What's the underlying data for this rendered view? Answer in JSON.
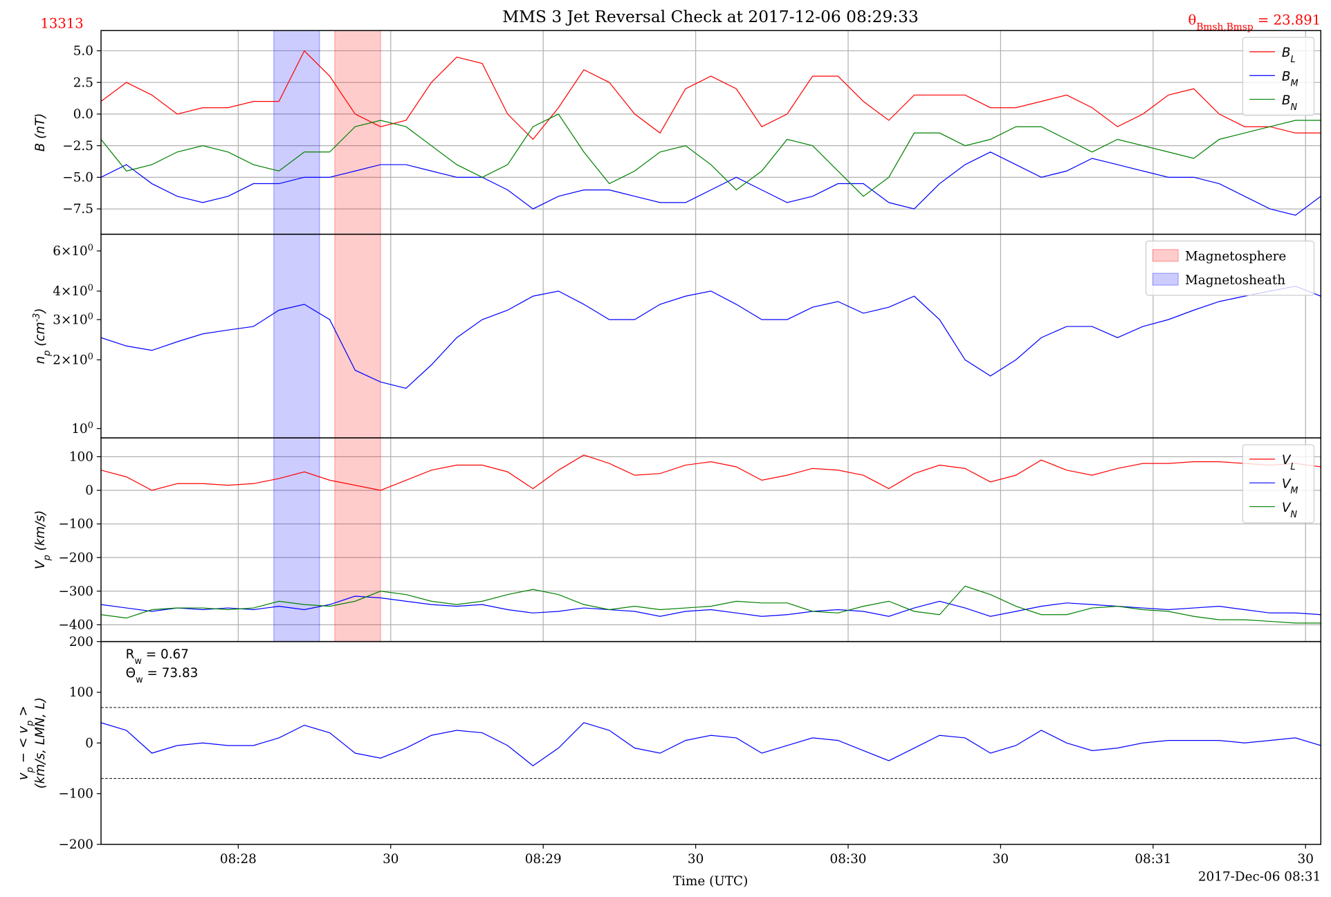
{
  "figure": {
    "title": "MMS 3 Jet Reversal Check at 2017-12-06 08:29:33",
    "id_label": "13313",
    "angle_label": "θ_{Bmsh,Bmsp} = 23.891",
    "xlabel": "Time (UTC)",
    "date_label": "2017-Dec-06 08:31"
  },
  "chart_data": [
    {
      "type": "line",
      "ylabel": "B (nT)",
      "grid": "both",
      "legend": "upper right",
      "x": [
        "08:27:33",
        "08:27:38",
        "08:27:43",
        "08:27:48",
        "08:27:53",
        "08:27:58",
        "08:28:03",
        "08:28:08",
        "08:28:13",
        "08:28:18",
        "08:28:23",
        "08:28:28",
        "08:28:33",
        "08:28:38",
        "08:28:43",
        "08:28:48",
        "08:28:53",
        "08:28:58",
        "08:29:03",
        "08:29:08",
        "08:29:13",
        "08:29:18",
        "08:29:23",
        "08:29:28",
        "08:29:33",
        "08:29:38",
        "08:29:43",
        "08:29:48",
        "08:29:53",
        "08:29:58",
        "08:30:03",
        "08:30:08",
        "08:30:13",
        "08:30:18",
        "08:30:23",
        "08:30:28",
        "08:30:33",
        "08:30:38",
        "08:30:43",
        "08:30:48",
        "08:30:53",
        "08:30:58",
        "08:31:03",
        "08:31:08",
        "08:31:13",
        "08:31:18",
        "08:31:23",
        "08:31:28",
        "08:31:33"
      ],
      "xlim": [
        "08:27:33",
        "08:31:33"
      ],
      "ylim": [
        -9.5,
        6.6
      ],
      "yticks": [
        {
          "value": 5,
          "label": "5.0"
        },
        2.5,
        {
          "value": 0,
          "label": "0.0"
        },
        {
          "value": -2.5,
          "label": "−2.5"
        },
        {
          "value": -5,
          "label": "−5.0"
        },
        {
          "value": -7.5,
          "label": "−7.5"
        }
      ],
      "series": [
        {
          "name": "B_L",
          "color": "#ff0000",
          "values": [
            1,
            2.5,
            1.5,
            0,
            0.5,
            0.5,
            1,
            1,
            5,
            3,
            0,
            -1,
            -0.5,
            2.5,
            4.5,
            4,
            0,
            -2,
            0.5,
            3.5,
            2.5,
            0,
            -1.5,
            2,
            3,
            2,
            -1,
            0,
            3,
            3,
            1,
            -0.5,
            1.5,
            1.5,
            1.5,
            0.5,
            0.5,
            1,
            1.5,
            0.5,
            -1,
            0,
            1.5,
            2,
            0,
            -1,
            -1,
            -1.5,
            -1.5
          ]
        },
        {
          "name": "B_M",
          "color": "#0000ff",
          "values": [
            -5,
            -4,
            -5.5,
            -6.5,
            -7,
            -6.5,
            -5.5,
            -5.5,
            -5,
            -5,
            -4.5,
            -4,
            -4,
            -4.5,
            -5,
            -5,
            -6,
            -7.5,
            -6.5,
            -6,
            -6,
            -6.5,
            -7,
            -7,
            -6,
            -5,
            -6,
            -7,
            -6.5,
            -5.5,
            -5.5,
            -7,
            -7.5,
            -5.5,
            -4,
            -3,
            -4,
            -5,
            -4.5,
            -3.5,
            -4,
            -4.5,
            -5,
            -5,
            -5.5,
            -6.5,
            -7.5,
            -8,
            -6.5
          ]
        },
        {
          "name": "B_N",
          "color": "#008000",
          "values": [
            -2,
            -4.5,
            -4,
            -3,
            -2.5,
            -3,
            -4,
            -4.5,
            -3,
            -3,
            -1,
            -0.5,
            -1,
            -2.5,
            -4,
            -5,
            -4,
            -1,
            0,
            -3,
            -5.5,
            -4.5,
            -3,
            -2.5,
            -4,
            -6,
            -4.5,
            -2,
            -2.5,
            -4.5,
            -6.5,
            -5,
            -1.5,
            -1.5,
            -2.5,
            -2,
            -1,
            -1,
            -2,
            -3,
            -2,
            -2.5,
            -3,
            -3.5,
            -2,
            -1.5,
            -1,
            -0.5,
            -0.5
          ]
        }
      ]
    },
    {
      "type": "line",
      "ylabel": "n_p (cm^{-3})",
      "grid": "x",
      "log": true,
      "legend": "upper right",
      "x": [
        "08:27:33",
        "08:27:38",
        "08:27:43",
        "08:27:48",
        "08:27:53",
        "08:27:58",
        "08:28:03",
        "08:28:08",
        "08:28:13",
        "08:28:18",
        "08:28:23",
        "08:28:28",
        "08:28:33",
        "08:28:38",
        "08:28:43",
        "08:28:48",
        "08:28:53",
        "08:28:58",
        "08:29:03",
        "08:29:08",
        "08:29:13",
        "08:29:18",
        "08:29:23",
        "08:29:28",
        "08:29:33",
        "08:29:38",
        "08:29:43",
        "08:29:48",
        "08:29:53",
        "08:29:58",
        "08:30:03",
        "08:30:08",
        "08:30:13",
        "08:30:18",
        "08:30:23",
        "08:30:28",
        "08:30:33",
        "08:30:38",
        "08:30:43",
        "08:30:48",
        "08:30:53",
        "08:30:58",
        "08:31:03",
        "08:31:08",
        "08:31:13",
        "08:31:18",
        "08:31:23",
        "08:31:28",
        "08:31:33"
      ],
      "xlim": [
        "08:27:33",
        "08:31:33"
      ],
      "ylim": [
        0.91,
        7.1
      ],
      "yticks": [
        {
          "value": 1,
          "label": "10^0"
        },
        {
          "value": 2,
          "label": "2×10^0"
        },
        {
          "value": 3,
          "label": "3×10^0"
        },
        {
          "value": 4,
          "label": "4×10^0"
        },
        {
          "value": 6,
          "label": "6×10^0"
        }
      ],
      "series": [
        {
          "color": "#0000ff",
          "values": [
            2.5,
            2.3,
            2.2,
            2.4,
            2.6,
            2.7,
            2.8,
            3.3,
            3.5,
            3,
            1.8,
            1.6,
            1.5,
            1.9,
            2.5,
            3,
            3.3,
            3.8,
            4,
            3.5,
            3,
            3,
            3.5,
            3.8,
            4,
            3.5,
            3,
            3,
            3.4,
            3.6,
            3.2,
            3.4,
            3.8,
            3,
            2,
            1.7,
            2,
            2.5,
            2.8,
            2.8,
            2.5,
            2.8,
            3,
            3.3,
            3.6,
            3.8,
            4,
            4.2,
            3.8
          ]
        }
      ],
      "spans": [
        {
          "label": "Magnetosphere",
          "color": "#ff0000",
          "range": [
            "08:28:19",
            "08:28:28"
          ]
        },
        {
          "label": "Magnetosheath",
          "color": "#0000ff",
          "range": [
            "08:28:07",
            "08:28:16"
          ]
        }
      ]
    },
    {
      "type": "line",
      "ylabel": "V_p (km/s)",
      "grid": "both",
      "legend": "upper right",
      "x": [
        "08:27:33",
        "08:27:38",
        "08:27:43",
        "08:27:48",
        "08:27:53",
        "08:27:58",
        "08:28:03",
        "08:28:08",
        "08:28:13",
        "08:28:18",
        "08:28:23",
        "08:28:28",
        "08:28:33",
        "08:28:38",
        "08:28:43",
        "08:28:48",
        "08:28:53",
        "08:28:58",
        "08:29:03",
        "08:29:08",
        "08:29:13",
        "08:29:18",
        "08:29:23",
        "08:29:28",
        "08:29:33",
        "08:29:38",
        "08:29:43",
        "08:29:48",
        "08:29:53",
        "08:29:58",
        "08:30:03",
        "08:30:08",
        "08:30:13",
        "08:30:18",
        "08:30:23",
        "08:30:28",
        "08:30:33",
        "08:30:38",
        "08:30:43",
        "08:30:48",
        "08:30:53",
        "08:30:58",
        "08:31:03",
        "08:31:08",
        "08:31:13",
        "08:31:18",
        "08:31:23",
        "08:31:28",
        "08:31:33"
      ],
      "xlim": [
        "08:27:33",
        "08:31:33"
      ],
      "ylim": [
        -450,
        156
      ],
      "yticks": [
        100,
        0,
        {
          "value": -100,
          "label": "−100"
        },
        {
          "value": -200,
          "label": "−200"
        },
        {
          "value": -300,
          "label": "−300"
        },
        {
          "value": -400,
          "label": "−400"
        }
      ],
      "series": [
        {
          "name": "V_L",
          "color": "#ff0000",
          "values": [
            60,
            40,
            0,
            20,
            20,
            15,
            20,
            35,
            55,
            30,
            15,
            0,
            30,
            60,
            75,
            75,
            55,
            5,
            60,
            105,
            80,
            45,
            50,
            75,
            85,
            70,
            30,
            45,
            65,
            60,
            45,
            5,
            50,
            75,
            65,
            25,
            45,
            90,
            60,
            45,
            65,
            80,
            80,
            85,
            85,
            80,
            75,
            80,
            70
          ]
        },
        {
          "name": "V_M",
          "color": "#0000ff",
          "values": [
            -340,
            -350,
            -360,
            -350,
            -355,
            -350,
            -355,
            -345,
            -355,
            -340,
            -315,
            -320,
            -330,
            -340,
            -345,
            -340,
            -355,
            -365,
            -360,
            -350,
            -355,
            -360,
            -375,
            -360,
            -355,
            -365,
            -375,
            -370,
            -360,
            -355,
            -360,
            -375,
            -350,
            -330,
            -350,
            -375,
            -360,
            -345,
            -335,
            -340,
            -345,
            -350,
            -355,
            -350,
            -345,
            -355,
            -365,
            -365,
            -370
          ]
        },
        {
          "name": "V_N",
          "color": "#008000",
          "values": [
            -370,
            -380,
            -355,
            -350,
            -350,
            -355,
            -350,
            -330,
            -340,
            -345,
            -330,
            -300,
            -310,
            -330,
            -340,
            -330,
            -310,
            -295,
            -310,
            -340,
            -355,
            -345,
            -355,
            -350,
            -345,
            -330,
            -335,
            -335,
            -360,
            -365,
            -345,
            -330,
            -360,
            -370,
            -285,
            -310,
            -345,
            -370,
            -370,
            -350,
            -345,
            -355,
            -360,
            -375,
            -385,
            -385,
            -390,
            -395,
            -395
          ]
        }
      ]
    },
    {
      "type": "line",
      "ylabel": [
        "v_p − < v_p >",
        "(km/s, LMN, L)"
      ],
      "grid": "none",
      "x": [
        "08:27:33",
        "08:27:38",
        "08:27:43",
        "08:27:48",
        "08:27:53",
        "08:27:58",
        "08:28:03",
        "08:28:08",
        "08:28:13",
        "08:28:18",
        "08:28:23",
        "08:28:28",
        "08:28:33",
        "08:28:38",
        "08:28:43",
        "08:28:48",
        "08:28:53",
        "08:28:58",
        "08:29:03",
        "08:29:08",
        "08:29:13",
        "08:29:18",
        "08:29:23",
        "08:29:28",
        "08:29:33",
        "08:29:38",
        "08:29:43",
        "08:29:48",
        "08:29:53",
        "08:29:58",
        "08:30:03",
        "08:30:08",
        "08:30:13",
        "08:30:18",
        "08:30:23",
        "08:30:28",
        "08:30:33",
        "08:30:38",
        "08:30:43",
        "08:30:48",
        "08:30:53",
        "08:30:58",
        "08:31:03",
        "08:31:08",
        "08:31:13",
        "08:31:18",
        "08:31:23",
        "08:31:28",
        "08:31:33"
      ],
      "xlim": [
        "08:27:33",
        "08:31:33"
      ],
      "ylim": [
        -200,
        200
      ],
      "xticks": [
        {
          "value": "08:28:00",
          "label": "08:28"
        },
        {
          "value": "08:28:30",
          "label": "30"
        },
        {
          "value": "08:29:00",
          "label": "08:29"
        },
        {
          "value": "08:29:30",
          "label": "30"
        },
        {
          "value": "08:30:00",
          "label": "08:30"
        },
        {
          "value": "08:30:30",
          "label": "30"
        },
        {
          "value": "08:31:00",
          "label": "08:31"
        },
        {
          "value": "08:31:30",
          "label": "30"
        }
      ],
      "yticks": [
        200,
        100,
        0,
        {
          "value": -100,
          "label": "−100"
        },
        {
          "value": -200,
          "label": "−200"
        }
      ],
      "hlines": [
        70,
        -70
      ],
      "annotations": [
        "R_w = 0.67",
        "Θ_w = 73.83"
      ],
      "series": [
        {
          "color": "#0000ff",
          "values": [
            40,
            25,
            -20,
            -5,
            0,
            -5,
            -5,
            10,
            35,
            20,
            -20,
            -30,
            -10,
            15,
            25,
            20,
            -5,
            -45,
            -10,
            40,
            25,
            -10,
            -20,
            5,
            15,
            10,
            -20,
            -5,
            10,
            5,
            -15,
            -35,
            -10,
            15,
            10,
            -20,
            -5,
            25,
            0,
            -15,
            -10,
            0,
            5,
            5,
            5,
            0,
            5,
            10,
            -5
          ]
        }
      ]
    }
  ]
}
